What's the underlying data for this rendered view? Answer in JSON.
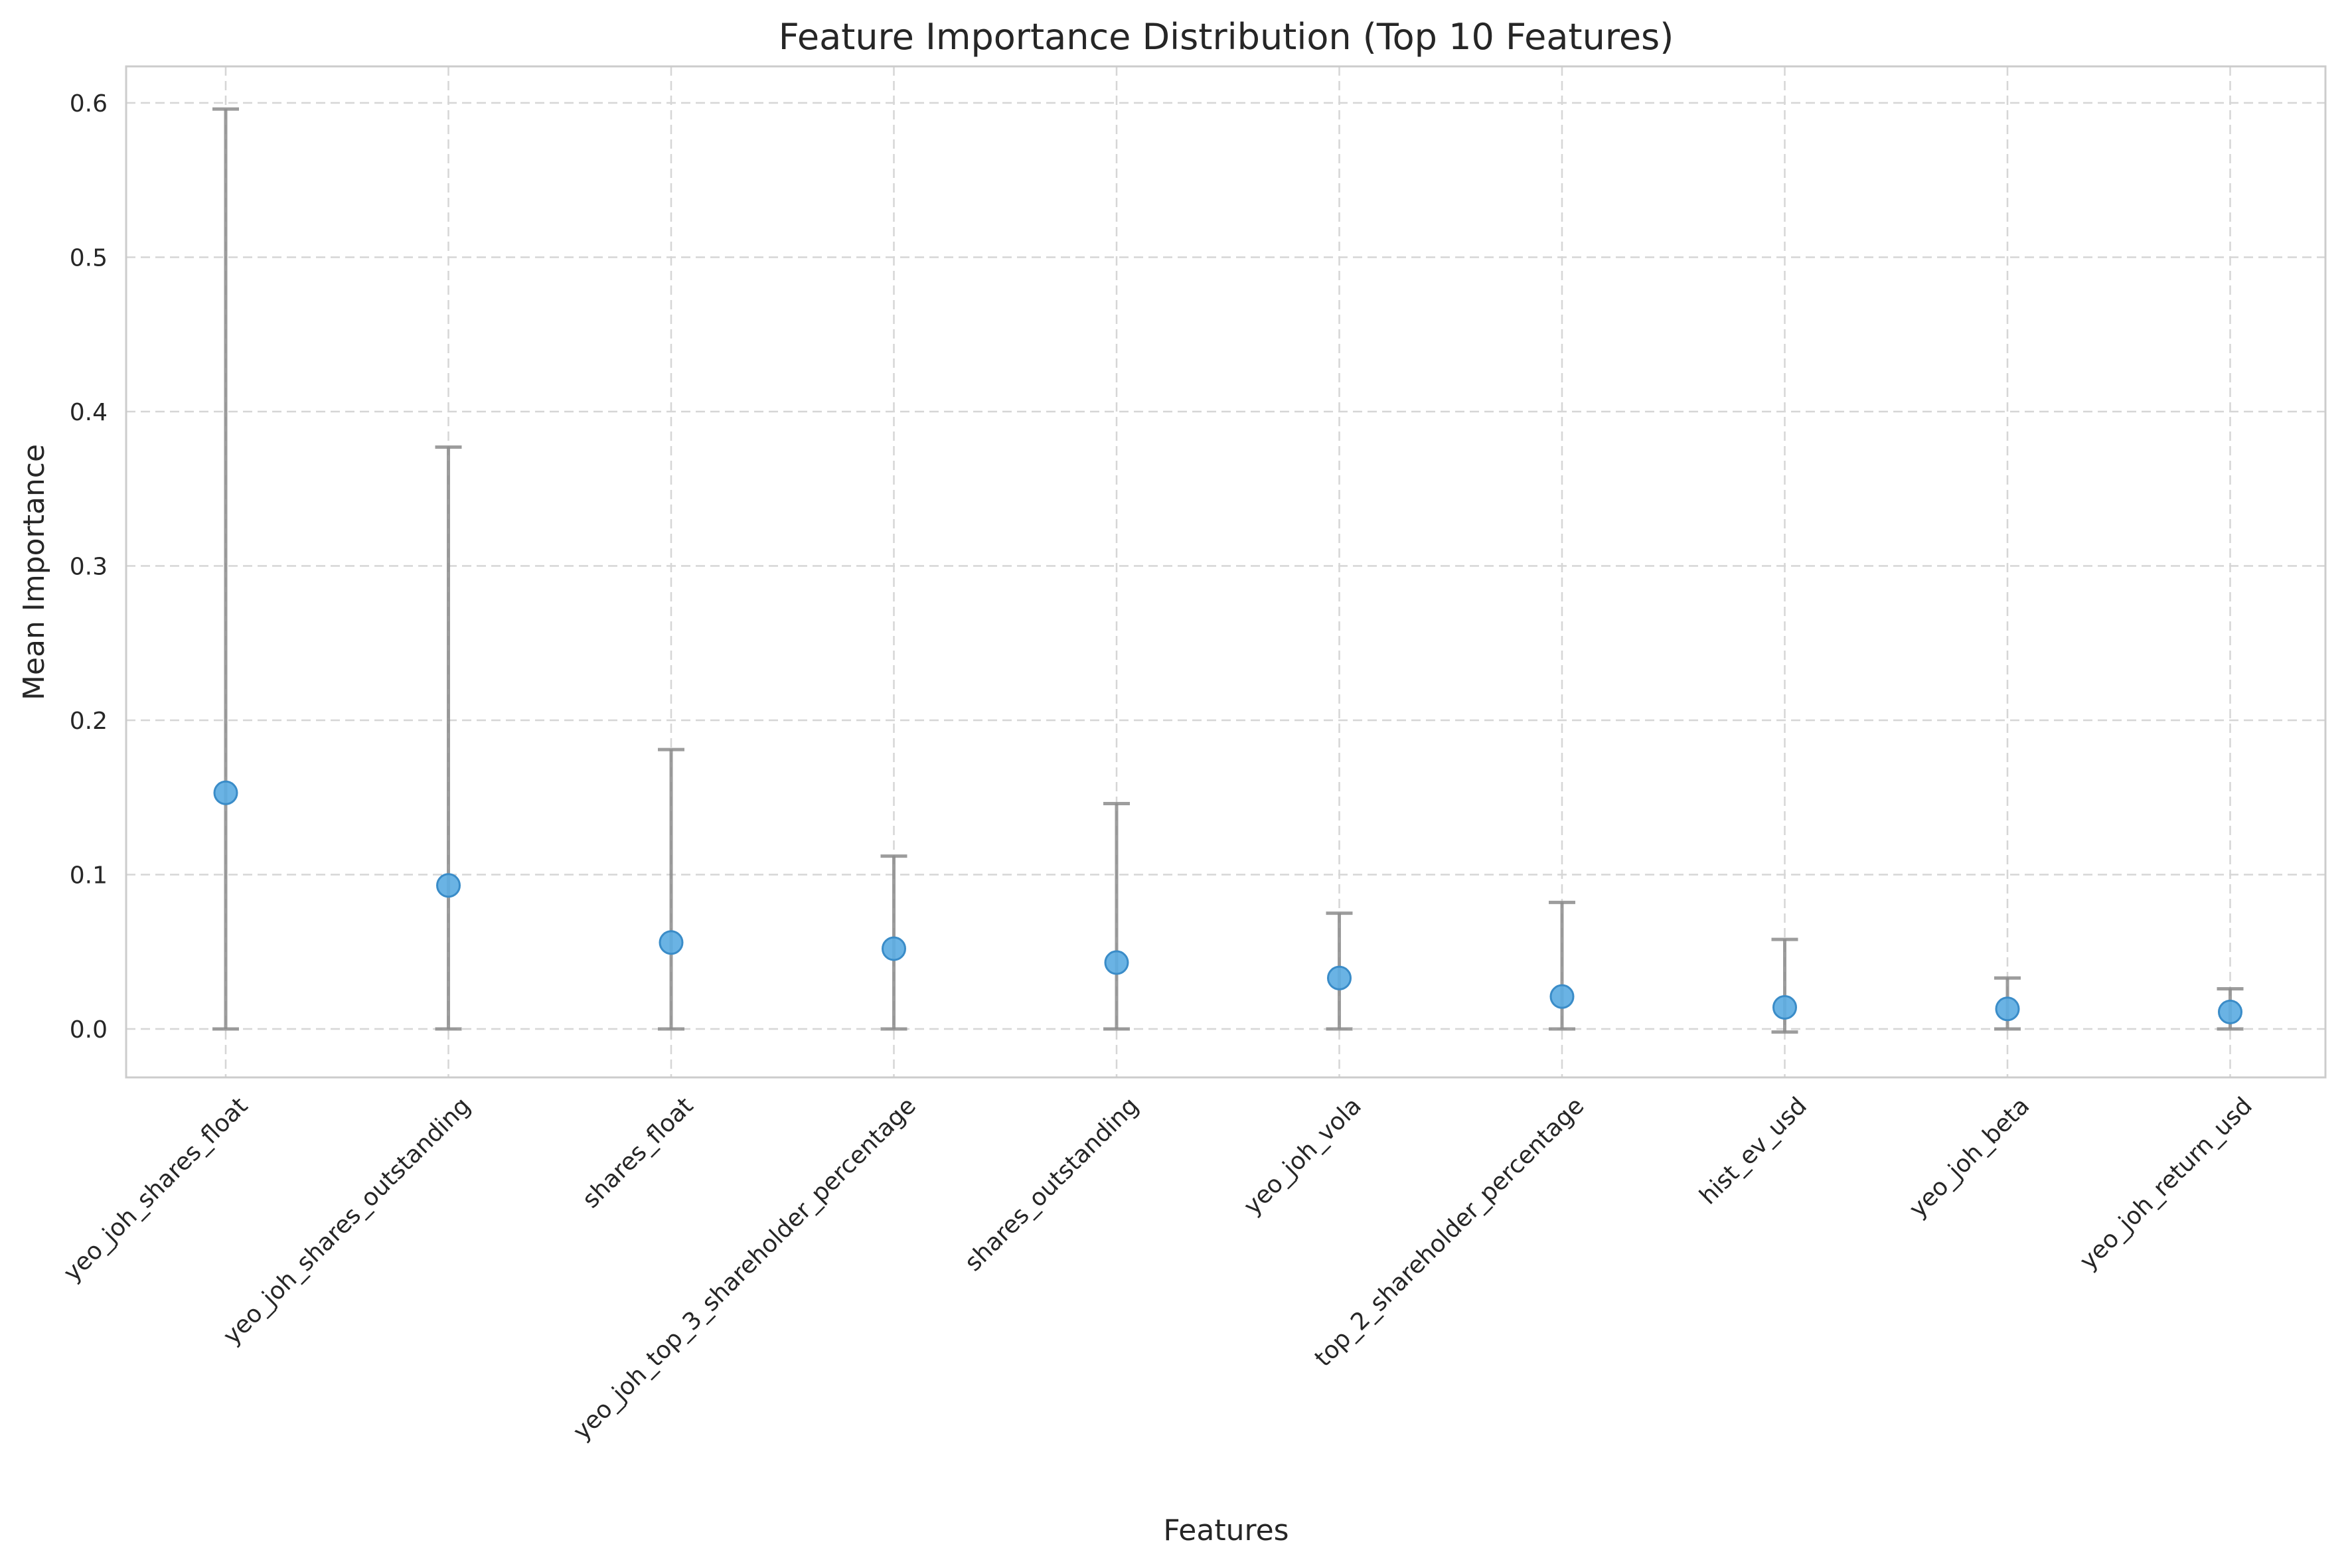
{
  "chart_data": {
    "type": "scatter",
    "title": "Feature Importance Distribution (Top 10 Features)",
    "xlabel": "Features",
    "ylabel": "Mean Importance",
    "categories": [
      "yeo_joh_shares_float",
      "yeo_joh_shares_outstanding",
      "shares_float",
      "yeo_joh_top_3_shareholder_percentage",
      "shares_outstanding",
      "yeo_joh_vola",
      "top_2_shareholder_percentage",
      "hist_ev_usd",
      "yeo_joh_beta",
      "yeo_joh_return_usd"
    ],
    "values": [
      0.153,
      0.093,
      0.056,
      0.052,
      0.043,
      0.033,
      0.021,
      0.014,
      0.013,
      0.011
    ],
    "error_lower": [
      0.0,
      0.0,
      0.0,
      0.0,
      0.0,
      0.0,
      0.0,
      -0.002,
      0.0,
      0.0
    ],
    "error_upper": [
      0.596,
      0.377,
      0.181,
      0.112,
      0.146,
      0.075,
      0.082,
      0.058,
      0.033,
      0.026
    ],
    "ylim": [
      -0.032,
      0.625
    ],
    "yticks": [
      0.0,
      0.1,
      0.2,
      0.3,
      0.4,
      0.5,
      0.6
    ],
    "ytick_labels": [
      "0.0",
      "0.1",
      "0.2",
      "0.3",
      "0.4",
      "0.5",
      "0.6"
    ],
    "grid": true,
    "marker_color": "#5dade2",
    "error_color": "#8c8c8c"
  }
}
